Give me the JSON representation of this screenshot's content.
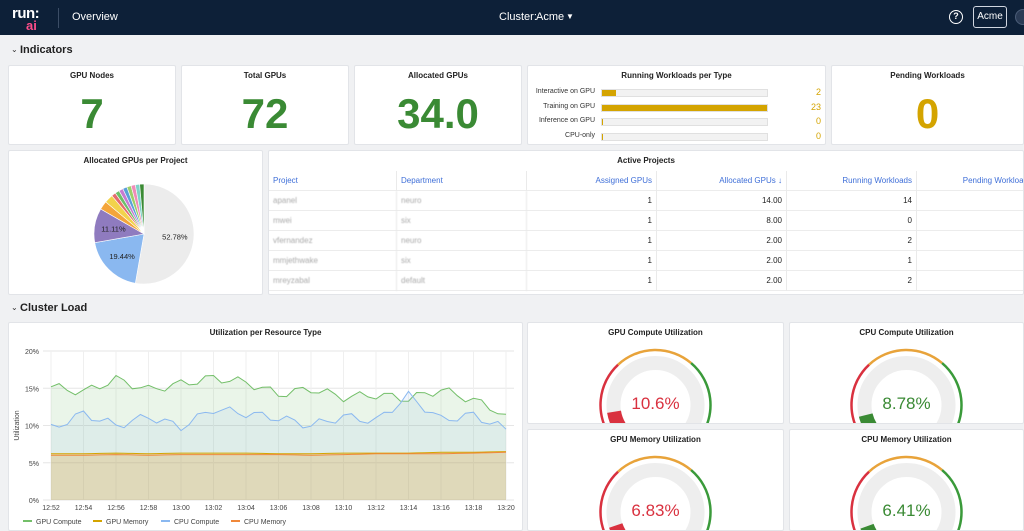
{
  "topbar": {
    "logo_top": "run:",
    "logo_bottom": "ai",
    "page": "Overview",
    "cluster_label": "Cluster:",
    "cluster_value": "Acme",
    "help": "?",
    "tenant": "Acme"
  },
  "sections": {
    "indicators": "Indicators",
    "cluster_load": "Cluster Load"
  },
  "stats": {
    "gpu_nodes": {
      "title": "GPU Nodes",
      "value": "7"
    },
    "total_gpus": {
      "title": "Total GPUs",
      "value": "72"
    },
    "allocated_gpus": {
      "title": "Allocated GPUs",
      "value": "34.0"
    },
    "pending_workloads": {
      "title": "Pending Workloads",
      "value": "0"
    }
  },
  "running_workloads": {
    "title": "Running Workloads per Type",
    "max": 23,
    "rows": [
      {
        "label": "Interactive on GPU",
        "value": 2
      },
      {
        "label": "Training on GPU",
        "value": 23
      },
      {
        "label": "Inference on GPU",
        "value": 0
      },
      {
        "label": "CPU-only",
        "value": 0
      }
    ]
  },
  "pie": {
    "title": "Allocated GPUs per Project",
    "slices": [
      {
        "value": 52.78,
        "label": "52.78%",
        "color": "#ececec"
      },
      {
        "value": 19.44,
        "label": "19.44%",
        "color": "#8ab8f0"
      },
      {
        "value": 11.11,
        "label": "11.11%",
        "color": "#8f7bbf"
      },
      {
        "value": 2.78,
        "color": "#f4a53a"
      },
      {
        "value": 2.78,
        "color": "#f2d24b"
      },
      {
        "value": 1.39,
        "color": "#e56b6f"
      },
      {
        "value": 1.39,
        "color": "#6dbf6a"
      },
      {
        "value": 1.39,
        "color": "#c77bd1"
      },
      {
        "value": 1.39,
        "color": "#5aa0d8"
      },
      {
        "value": 1.39,
        "color": "#9ccf6a"
      },
      {
        "value": 1.39,
        "color": "#f08bb8"
      },
      {
        "value": 1.39,
        "color": "#7fd3c8"
      },
      {
        "value": 1.39,
        "color": "#3a8a34"
      }
    ]
  },
  "active_projects": {
    "title": "Active Projects",
    "columns": [
      "Project",
      "Department",
      "Assigned GPUs",
      "Allocated GPUs ↓",
      "Running Workloads",
      "Pending Workloads"
    ],
    "rows": [
      [
        "apanel",
        "neuro",
        "1",
        "14.00",
        "14",
        ""
      ],
      [
        "mwei",
        "six",
        "1",
        "8.00",
        "0",
        ""
      ],
      [
        "vfernandez",
        "neuro",
        "1",
        "2.00",
        "2",
        ""
      ],
      [
        "mmjethwake",
        "six",
        "1",
        "2.00",
        "1",
        ""
      ],
      [
        "mreyzabal",
        "default",
        "1",
        "2.00",
        "2",
        ""
      ]
    ]
  },
  "utilization_chart": {
    "title": "Utilization per Resource Type",
    "ylabel": "Utilization"
  },
  "chart_data": {
    "type": "area",
    "title": "Utilization per Resource Type",
    "ylabel": "Utilization",
    "xlabel": "",
    "x": [
      "12:52",
      "12:54",
      "12:56",
      "12:58",
      "13:00",
      "13:02",
      "13:04",
      "13:06",
      "13:08",
      "13:10",
      "13:12",
      "13:14",
      "13:16",
      "13:18",
      "13:20"
    ],
    "yticks": [
      "0%",
      "5%",
      "10%",
      "15%",
      "20%"
    ],
    "ylim": [
      0,
      20
    ],
    "legend_position": "bottom",
    "series": [
      {
        "name": "GPU Compute",
        "color": "#73bf69",
        "values": [
          15.2,
          14.5,
          16.2,
          14.8,
          15.6,
          16.4,
          15.8,
          14.2,
          14.9,
          13.8,
          14.1,
          13.6,
          14.8,
          13.4,
          11.5
        ]
      },
      {
        "name": "GPU Memory",
        "color": "#d4a400",
        "values": [
          6.2,
          6.2,
          6.3,
          6.2,
          6.3,
          6.3,
          6.3,
          6.2,
          6.2,
          6.3,
          6.3,
          6.3,
          6.4,
          6.4,
          6.5
        ]
      },
      {
        "name": "CPU Compute",
        "color": "#8ab8f0",
        "values": [
          9.6,
          11.6,
          10.0,
          11.2,
          9.8,
          12.2,
          11.6,
          11.0,
          10.0,
          11.2,
          10.6,
          14.0,
          10.8,
          11.4,
          9.5
        ]
      },
      {
        "name": "CPU Memory",
        "color": "#f0883a",
        "values": [
          6.0,
          6.0,
          6.1,
          6.0,
          6.1,
          6.1,
          6.1,
          6.1,
          6.0,
          6.1,
          6.2,
          6.2,
          6.2,
          6.3,
          6.4
        ]
      }
    ]
  },
  "gauges": [
    {
      "title": "GPU Compute Utilization",
      "value": "10.6%",
      "pct": 10.6,
      "color": "#d9313f"
    },
    {
      "title": "CPU Compute Utilization",
      "value": "8.78%",
      "pct": 8.78,
      "color": "#3a8a34"
    },
    {
      "title": "GPU Memory Utilization",
      "value": "6.83%",
      "pct": 6.83,
      "color": "#d9313f"
    },
    {
      "title": "CPU Memory Utilization",
      "value": "6.41%",
      "pct": 6.41,
      "color": "#3a8a34"
    }
  ]
}
